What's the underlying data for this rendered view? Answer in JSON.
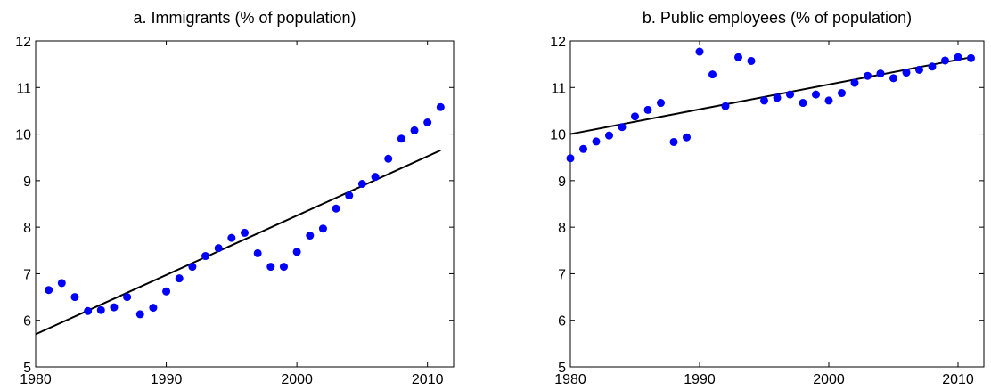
{
  "chart_data": [
    {
      "type": "scatter",
      "title": "a. Immigrants (% of population)",
      "xlim": [
        1980,
        2012
      ],
      "xticks": [
        1980,
        1990,
        2000,
        2010
      ],
      "ylim": [
        5,
        12
      ],
      "yticks": [
        5,
        6,
        7,
        8,
        9,
        10,
        11,
        12
      ],
      "points": {
        "color": "#0000ff",
        "x": [
          1981,
          1982,
          1983,
          1984,
          1985,
          1986,
          1987,
          1988,
          1989,
          1990,
          1991,
          1992,
          1993,
          1994,
          1995,
          1996,
          1997,
          1998,
          1999,
          2000,
          2001,
          2002,
          2003,
          2004,
          2005,
          2006,
          2007,
          2008,
          2009,
          2010,
          2011
        ],
        "values": [
          6.65,
          6.8,
          6.5,
          6.2,
          6.22,
          6.28,
          6.5,
          6.13,
          6.27,
          6.62,
          6.9,
          7.15,
          7.38,
          7.55,
          7.77,
          7.88,
          7.44,
          7.15,
          7.15,
          7.47,
          7.82,
          7.97,
          8.4,
          8.68,
          8.93,
          9.08,
          9.47,
          9.9,
          10.08,
          10.25,
          10.58
        ]
      },
      "fit": {
        "color": "#000000",
        "x": [
          1980,
          2011
        ],
        "values": [
          5.7,
          9.65
        ]
      }
    },
    {
      "type": "scatter",
      "title": "b. Public employees (% of population)",
      "xlim": [
        1980,
        2012
      ],
      "xticks": [
        1980,
        1990,
        2000,
        2010
      ],
      "ylim": [
        5,
        12
      ],
      "yticks": [
        5,
        6,
        7,
        8,
        9,
        10,
        11,
        12
      ],
      "points": {
        "color": "#0000ff",
        "x": [
          1980,
          1981,
          1982,
          1983,
          1984,
          1985,
          1986,
          1987,
          1988,
          1989,
          1990,
          1991,
          1992,
          1993,
          1994,
          1995,
          1996,
          1997,
          1998,
          1999,
          2000,
          2001,
          2002,
          2003,
          2004,
          2005,
          2006,
          2007,
          2008,
          2009,
          2010,
          2011
        ],
        "values": [
          9.48,
          9.68,
          9.84,
          9.97,
          10.15,
          10.38,
          10.52,
          10.67,
          9.83,
          9.93,
          11.77,
          11.28,
          10.6,
          11.65,
          11.57,
          10.72,
          10.78,
          10.85,
          10.67,
          10.85,
          10.72,
          10.88,
          11.1,
          11.25,
          11.3,
          11.2,
          11.32,
          11.38,
          11.45,
          11.58,
          11.65,
          11.63
        ]
      },
      "fit": {
        "color": "#000000",
        "x": [
          1980,
          2011
        ],
        "values": [
          10.0,
          11.65
        ]
      }
    }
  ]
}
